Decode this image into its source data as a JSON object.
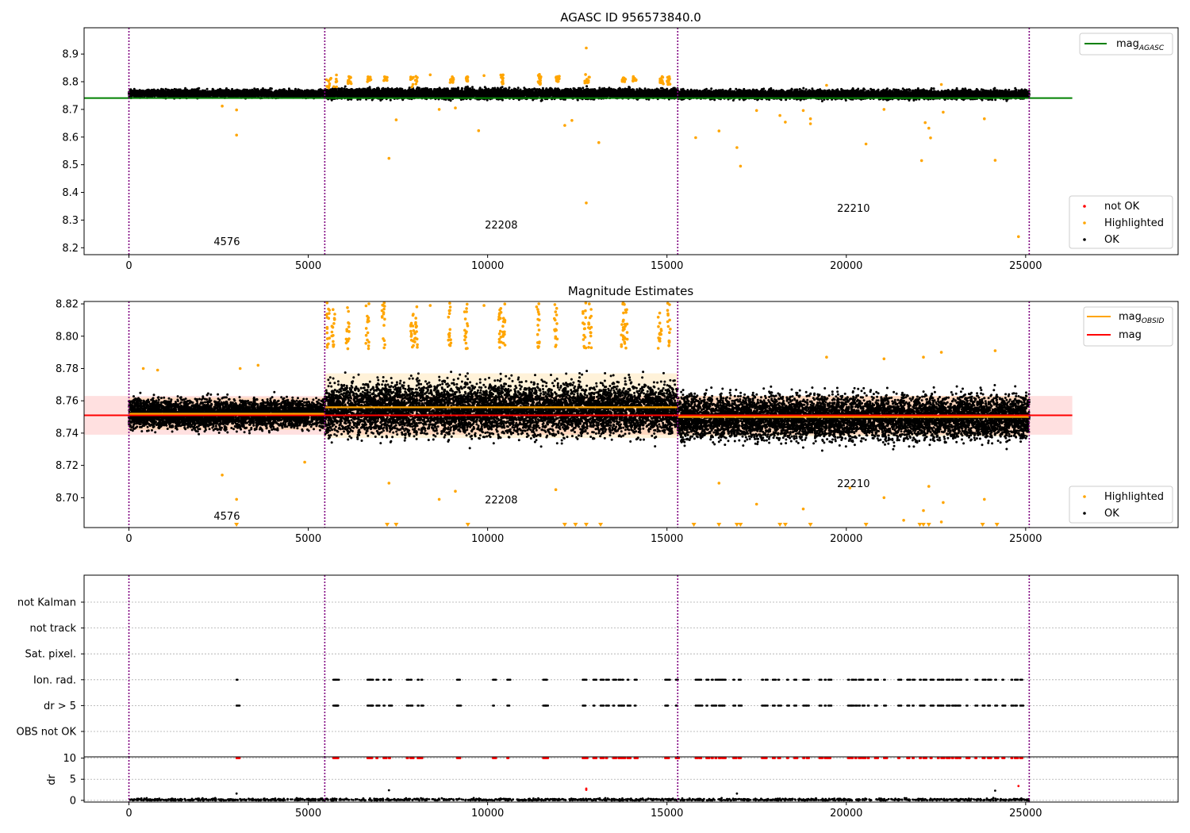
{
  "colors": {
    "ok": "#000000",
    "highlighted": "#ffa500",
    "not_ok": "#ff0000",
    "agasc_line": "#008000",
    "mag_line": "#ff0000",
    "obsid_line": "#ffa500",
    "obsid_divider": "#800080"
  },
  "chart_data": [
    {
      "type": "scatter",
      "title": "AGASC ID 956573840.0",
      "xlabel": "",
      "ylabel": "",
      "xlim": [
        -1250,
        29250
      ],
      "ylim": [
        8.175,
        8.995
      ],
      "xticks": [
        0,
        5000,
        10000,
        15000,
        20000,
        25000
      ],
      "yticks": [
        8.2,
        8.3,
        8.4,
        8.5,
        8.6,
        8.7,
        8.8,
        8.9
      ],
      "obsid_boundaries": [
        0,
        5460,
        15300,
        25100
      ],
      "obsid_labels": [
        {
          "text": "4576",
          "x": 2730,
          "y": 8.21
        },
        {
          "text": "22208",
          "x": 10380,
          "y": 8.27
        },
        {
          "text": "22210",
          "x": 20200,
          "y": 8.33
        }
      ],
      "reference_line": {
        "name": "mag_AGASC",
        "y": 8.741,
        "x": [
          0,
          26300
        ]
      },
      "ok_band": [
        {
          "x0": 0,
          "x1": 5460,
          "center": 8.757,
          "spread": 0.012
        },
        {
          "x0": 5460,
          "x1": 15300,
          "center": 8.757,
          "spread": 0.016
        },
        {
          "x0": 15300,
          "x1": 25100,
          "center": 8.754,
          "spread": 0.014
        }
      ],
      "highlighted_clusters": [
        {
          "x": [
            5500,
            5800
          ],
          "y": [
            8.775,
            8.825
          ]
        },
        {
          "x": [
            6100,
            6200
          ],
          "y": [
            8.79,
            8.82
          ]
        },
        {
          "x": [
            6650,
            6750
          ],
          "y": [
            8.8,
            8.82
          ]
        },
        {
          "x": [
            7100,
            7200
          ],
          "y": [
            8.8,
            8.82
          ]
        },
        {
          "x": [
            7850,
            8050
          ],
          "y": [
            8.78,
            8.82
          ]
        },
        {
          "x": [
            8950,
            9050
          ],
          "y": [
            8.795,
            8.82
          ]
        },
        {
          "x": [
            9400,
            9450
          ],
          "y": [
            8.8,
            8.82
          ]
        },
        {
          "x": [
            10350,
            10450
          ],
          "y": [
            8.79,
            8.825
          ]
        },
        {
          "x": [
            11400,
            11500
          ],
          "y": [
            8.79,
            8.83
          ]
        },
        {
          "x": [
            11900,
            12000
          ],
          "y": [
            8.8,
            8.82
          ]
        },
        {
          "x": [
            12700,
            12850
          ],
          "y": [
            8.79,
            8.83
          ]
        },
        {
          "x": [
            13750,
            13850
          ],
          "y": [
            8.8,
            8.82
          ]
        },
        {
          "x": [
            14050,
            14150
          ],
          "y": [
            8.8,
            8.82
          ]
        },
        {
          "x": [
            14800,
            14900
          ],
          "y": [
            8.79,
            8.82
          ]
        },
        {
          "x": [
            15000,
            15100
          ],
          "y": [
            8.79,
            8.82
          ]
        }
      ],
      "highlighted_points": [
        {
          "x": 3000,
          "y": 8.607
        },
        {
          "x": 3000,
          "y": 8.698
        },
        {
          "x": 2600,
          "y": 8.712
        },
        {
          "x": 7250,
          "y": 8.523
        },
        {
          "x": 7450,
          "y": 8.662
        },
        {
          "x": 8650,
          "y": 8.7
        },
        {
          "x": 9100,
          "y": 8.705
        },
        {
          "x": 9750,
          "y": 8.623
        },
        {
          "x": 12150,
          "y": 8.642
        },
        {
          "x": 12350,
          "y": 8.66
        },
        {
          "x": 12750,
          "y": 8.922
        },
        {
          "x": 12750,
          "y": 8.362
        },
        {
          "x": 13100,
          "y": 8.58
        },
        {
          "x": 15800,
          "y": 8.598
        },
        {
          "x": 16450,
          "y": 8.622
        },
        {
          "x": 16950,
          "y": 8.562
        },
        {
          "x": 17050,
          "y": 8.495
        },
        {
          "x": 17500,
          "y": 8.696
        },
        {
          "x": 18150,
          "y": 8.678
        },
        {
          "x": 18300,
          "y": 8.654
        },
        {
          "x": 18800,
          "y": 8.696
        },
        {
          "x": 19000,
          "y": 8.648
        },
        {
          "x": 19000,
          "y": 8.666
        },
        {
          "x": 20550,
          "y": 8.575
        },
        {
          "x": 21050,
          "y": 8.7
        },
        {
          "x": 22100,
          "y": 8.515
        },
        {
          "x": 22200,
          "y": 8.652
        },
        {
          "x": 22300,
          "y": 8.632
        },
        {
          "x": 22350,
          "y": 8.597
        },
        {
          "x": 22700,
          "y": 8.69
        },
        {
          "x": 23850,
          "y": 8.666
        },
        {
          "x": 24150,
          "y": 8.516
        },
        {
          "x": 24800,
          "y": 8.24
        },
        {
          "x": 19450,
          "y": 8.787
        },
        {
          "x": 22650,
          "y": 8.79
        },
        {
          "x": 8400,
          "y": 8.825
        },
        {
          "x": 9900,
          "y": 8.822
        }
      ],
      "legends": [
        {
          "position": "upper right",
          "entries": [
            "mag_AGASC"
          ]
        },
        {
          "position": "lower right",
          "entries": [
            "not OK",
            "Highlighted",
            "OK"
          ]
        }
      ]
    },
    {
      "type": "scatter",
      "title": "Magnitude Estimates",
      "xlabel": "",
      "ylabel": "",
      "xlim": [
        -1250,
        29250
      ],
      "ylim": [
        8.6815,
        8.8215
      ],
      "xticks": [
        0,
        5000,
        10000,
        15000,
        20000,
        25000
      ],
      "yticks": [
        8.7,
        8.72,
        8.74,
        8.76,
        8.78,
        8.8,
        8.82
      ],
      "obsid_boundaries": [
        0,
        5460,
        15300,
        25100
      ],
      "obsid_labels": [
        {
          "text": "4576",
          "x": 2730,
          "y": 8.6865
        },
        {
          "text": "22208",
          "x": 10380,
          "y": 8.6965
        },
        {
          "text": "22210",
          "x": 20200,
          "y": 8.7065
        }
      ],
      "mag": {
        "name": "mag",
        "y": 8.751,
        "band": [
          8.739,
          8.763
        ],
        "x": [
          0,
          26300
        ]
      },
      "mag_obsid": [
        {
          "x0": 0,
          "x1": 5460,
          "y": 8.752,
          "band": [
            8.742,
            8.762
          ]
        },
        {
          "x0": 5460,
          "x1": 15300,
          "y": 8.756,
          "band": [
            8.737,
            8.777
          ]
        },
        {
          "x0": 15300,
          "x1": 25100,
          "y": 8.75,
          "band": [
            8.738,
            8.763
          ]
        }
      ],
      "ok_band": [
        {
          "x0": 0,
          "x1": 5460,
          "center": 8.752,
          "spread": 0.008
        },
        {
          "x0": 5460,
          "x1": 15300,
          "center": 8.755,
          "spread": 0.014
        },
        {
          "x0": 15300,
          "x1": 25100,
          "center": 8.75,
          "spread": 0.012
        }
      ],
      "highlighted_columns": [
        5550,
        5700,
        6100,
        6650,
        7100,
        7900,
        8000,
        8950,
        9400,
        10350,
        10450,
        11400,
        11900,
        12700,
        12850,
        13750,
        13850,
        14800,
        15050
      ],
      "highlighted_points": [
        {
          "x": 2600,
          "y": 8.714
        },
        {
          "x": 3000,
          "y": 8.699
        },
        {
          "x": 4900,
          "y": 8.722
        },
        {
          "x": 7250,
          "y": 8.709
        },
        {
          "x": 8650,
          "y": 8.699
        },
        {
          "x": 9100,
          "y": 8.704
        },
        {
          "x": 11900,
          "y": 8.705
        },
        {
          "x": 16450,
          "y": 8.709
        },
        {
          "x": 17500,
          "y": 8.696
        },
        {
          "x": 18800,
          "y": 8.693
        },
        {
          "x": 20100,
          "y": 8.706
        },
        {
          "x": 21050,
          "y": 8.7
        },
        {
          "x": 22150,
          "y": 8.692
        },
        {
          "x": 22300,
          "y": 8.707
        },
        {
          "x": 22700,
          "y": 8.697
        },
        {
          "x": 23850,
          "y": 8.699
        },
        {
          "x": 21600,
          "y": 8.686
        },
        {
          "x": 22650,
          "y": 8.685
        },
        {
          "x": 19450,
          "y": 8.787
        },
        {
          "x": 21050,
          "y": 8.786
        },
        {
          "x": 22150,
          "y": 8.787
        },
        {
          "x": 22650,
          "y": 8.79
        },
        {
          "x": 24150,
          "y": 8.791
        },
        {
          "x": 400,
          "y": 8.78
        },
        {
          "x": 800,
          "y": 8.779
        },
        {
          "x": 3100,
          "y": 8.78
        },
        {
          "x": 3600,
          "y": 8.782
        },
        {
          "x": 8400,
          "y": 8.819
        },
        {
          "x": 9900,
          "y": 8.819
        }
      ],
      "below_range_markers": [
        3000,
        7200,
        7450,
        9450,
        12150,
        12450,
        12750,
        13150,
        15750,
        16450,
        16950,
        17050,
        18150,
        18300,
        19000,
        20550,
        22050,
        22150,
        22300,
        23800,
        24200
      ],
      "legends": [
        {
          "position": "upper right",
          "entries": [
            "mag_OBSID",
            "mag"
          ]
        },
        {
          "position": "lower right",
          "entries": [
            "Highlighted",
            "OK"
          ]
        }
      ]
    },
    {
      "type": "scatter",
      "title": "",
      "xlabel": "",
      "ylabel": "",
      "xlim": [
        -1250,
        29250
      ],
      "categories": [
        "not Kalman",
        "not track",
        "Sat. pixel.",
        "Ion. rad.",
        "dr > 5",
        "OBS not OK"
      ],
      "obsid_boundaries": [
        0,
        5460,
        15300,
        25100
      ],
      "flag_events_x": [
        3000,
        5700,
        5750,
        5800,
        6650,
        6700,
        6750,
        6900,
        7100,
        7250,
        7750,
        7850,
        8050,
        8150,
        9150,
        9200,
        10150,
        10550,
        11550,
        11600,
        12650,
        12700,
        12950,
        13150,
        13300,
        13500,
        13650,
        13750,
        13900,
        14100,
        14950,
        15000,
        15250,
        15800,
        15900,
        16100,
        16250,
        16350,
        16450,
        16550,
        16850,
        17000,
        17650,
        17750,
        17950,
        18100,
        18350,
        18550,
        18800,
        18900,
        19250,
        19400,
        19500,
        20050,
        20150,
        20250,
        20350,
        20450,
        20600,
        20800,
        21050,
        21450,
        21700,
        21850,
        22050,
        22150,
        22350,
        22550,
        22650,
        22800,
        22950,
        23050,
        23150,
        23350,
        23600,
        23800,
        23950,
        24150,
        24350,
        24600,
        24700,
        24850
      ]
    },
    {
      "type": "scatter",
      "title": "",
      "xlabel": "",
      "ylabel": "dr",
      "xlim": [
        -1250,
        29250
      ],
      "ylim": [
        -0.4,
        10.3
      ],
      "xticks": [
        0,
        5000,
        10000,
        15000,
        20000,
        25000
      ],
      "yticks": [
        0,
        5,
        10
      ],
      "obsid_boundaries": [
        0,
        5460,
        15300,
        25100
      ],
      "threshold_line": 10,
      "red_events_x": [
        3000,
        5700,
        5750,
        5800,
        6650,
        6700,
        6750,
        6900,
        7100,
        7250,
        7750,
        7850,
        8050,
        8150,
        9150,
        9200,
        10150,
        10550,
        11550,
        11600,
        12650,
        12700,
        12950,
        13150,
        13300,
        13500,
        13650,
        13750,
        13900,
        14100,
        14950,
        15000,
        15250,
        15800,
        15900,
        16100,
        16250,
        16350,
        16450,
        16550,
        16850,
        17000,
        17650,
        17750,
        17950,
        18100,
        18350,
        18550,
        18800,
        18900,
        19250,
        19400,
        19500,
        20050,
        20150,
        20250,
        20350,
        20450,
        20600,
        20800,
        21050,
        21450,
        21700,
        21850,
        22050,
        22150,
        22350,
        22550,
        22650,
        22800,
        22950,
        23050,
        23150,
        23350,
        23600,
        23800,
        23950,
        24150,
        24350,
        24600,
        24700,
        24850
      ],
      "outlier_points": [
        {
          "x": 3000,
          "y": 1.6,
          "c": "ok"
        },
        {
          "x": 7250,
          "y": 2.4,
          "c": "ok"
        },
        {
          "x": 12750,
          "y": 2.8,
          "c": "not_ok"
        },
        {
          "x": 12750,
          "y": 2.5,
          "c": "not_ok"
        },
        {
          "x": 16950,
          "y": 1.6,
          "c": "ok"
        },
        {
          "x": 24150,
          "y": 2.3,
          "c": "ok"
        },
        {
          "x": 24800,
          "y": 3.4,
          "c": "not_ok"
        }
      ]
    }
  ],
  "legend_text": {
    "mag_prefix": "mag",
    "agasc_sub": "AGASC",
    "obsid_sub": "OBSID",
    "mag": "mag",
    "not_ok": "not OK",
    "highlighted": "Highlighted",
    "ok": "OK"
  }
}
